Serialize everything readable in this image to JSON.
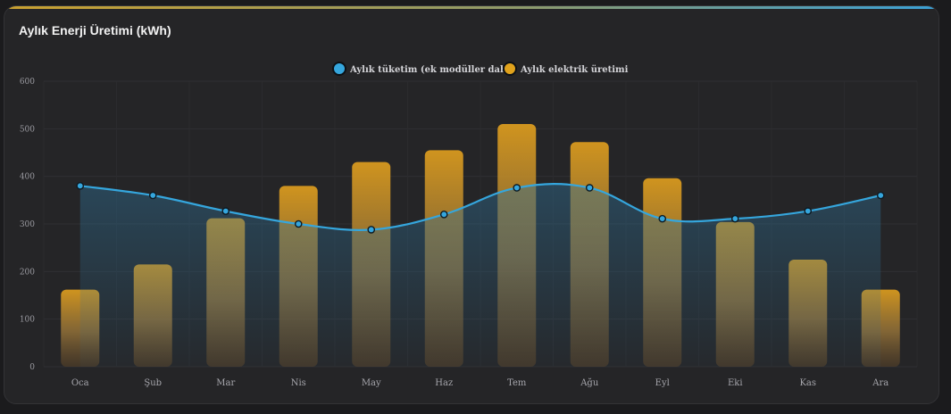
{
  "card": {
    "title": "Aylık Enerji Üretimi (kWh)"
  },
  "colors": {
    "accent_gold": "#e0a21c",
    "accent_blue": "#35a6dd",
    "background": "#252527"
  },
  "chart_data": {
    "type": "bar",
    "title": "Aylık Enerji Üretimi (kWh)",
    "categories": [
      "Oca",
      "Şub",
      "Mar",
      "Nis",
      "May",
      "Haz",
      "Tem",
      "Ağu",
      "Eyl",
      "Eki",
      "Kas",
      "Ara"
    ],
    "series": [
      {
        "name": "Aylık tüketim (ek modüller dahil)",
        "type": "line",
        "color": "#35a6dd",
        "values": [
          380,
          360,
          327,
          300,
          288,
          320,
          376,
          376,
          311,
          311,
          327,
          360
        ]
      },
      {
        "name": "Aylık elektrik üretimi",
        "type": "bar",
        "color": "#e0a21c",
        "values": [
          162,
          215,
          312,
          380,
          430,
          455,
          510,
          472,
          396,
          304,
          225,
          162
        ]
      }
    ],
    "yticks": [
      0,
      100,
      200,
      300,
      400,
      500,
      600
    ],
    "ylim": [
      0,
      600
    ],
    "grid": true,
    "legend_position": "top-center",
    "xlabel": "",
    "ylabel": ""
  }
}
